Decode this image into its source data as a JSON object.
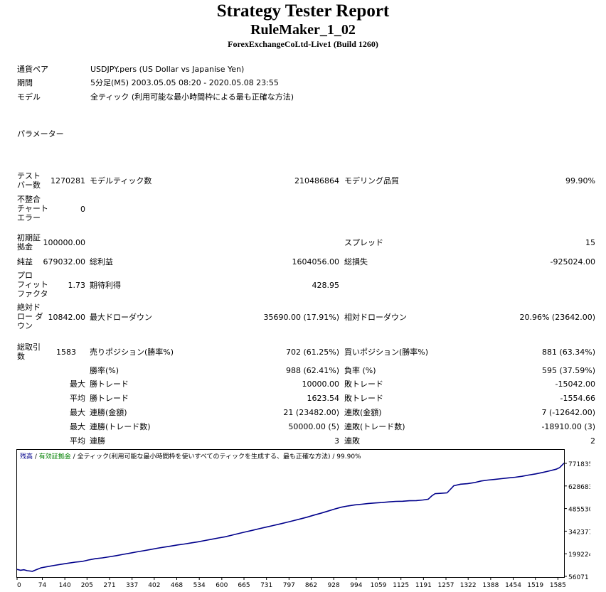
{
  "header": {
    "title": "Strategy Tester Report",
    "subtitle": "RuleMaker_1_02",
    "build": "ForexExchangeCoLtd-Live1 (Build 1260)"
  },
  "info": {
    "pair_label": "通貨ペア",
    "pair_value": "USDJPY.pers (US Dollar vs Japanise Yen)",
    "period_label": "期間",
    "period_value": "5分足(M5) 2003.05.05 08:20 - 2020.05.08 23:55",
    "model_label": "モデル",
    "model_value": "全ティック (利用可能な最小時間枠による最も正確な方法)",
    "params_label": "パラメーター"
  },
  "stats": {
    "bars_label": "テスト\nバー数",
    "bars_value": "1270281",
    "ticks_label": "モデルティック数",
    "ticks_value": "210486864",
    "quality_label": "モデリング品質",
    "quality_value": "99.90%",
    "mismatch_label": "不整合\nチャート\nエラー",
    "mismatch_value": "0",
    "deposit_label": "初期証\n拠金",
    "deposit_value": "100000.00",
    "spread_label": "スプレッド",
    "spread_value": "15",
    "net_label": "純益",
    "net_value": "679032.00",
    "gross_profit_label": "総利益",
    "gross_profit_value": "1604056.00",
    "gross_loss_label": "総損失",
    "gross_loss_value": "-925024.00",
    "pf_label": "プロ\nフィット\nファクタ",
    "pf_value": "1.73",
    "expected_label": "期待利得",
    "expected_value": "428.95",
    "abs_dd_label": "絶対ド\nロー ダ\nウン",
    "abs_dd_value": "10842.00",
    "max_dd_label": "最大ドローダウン",
    "max_dd_value": "35690.00 (17.91%)",
    "rel_dd_label": "相対ドローダウン",
    "rel_dd_value": "20.96% (23642.00)",
    "trades_label": "総取引\n数",
    "trades_value": "1583",
    "short_label": "売りポジション(勝率%)",
    "short_value": "702 (61.25%)",
    "long_label": "買いポジション(勝率%)",
    "long_value": "881 (63.34%)",
    "win_label": "勝率(%)",
    "win_value": "988 (62.41%)",
    "loss_label": "負率 (%)",
    "loss_value": "595 (37.59%)",
    "max1": "最大",
    "largest_win_label": "勝トレード",
    "largest_win_value": "10000.00",
    "largest_loss_label": "敗トレード",
    "largest_loss_value": "-15042.00",
    "avg1": "平均",
    "avg_win_label": "勝トレード",
    "avg_win_value": "1623.54",
    "avg_loss_label": "敗トレード",
    "avg_loss_value": "-1554.66",
    "max2": "最大",
    "cons_wins_label": "連勝(金額)",
    "cons_wins_value": "21 (23482.00)",
    "cons_losses_label": "連敗(金額)",
    "cons_losses_value": "7 (-12642.00)",
    "max3": "最大",
    "cons_profit_label": "連勝(トレード数)",
    "cons_profit_value": "50000.00 (5)",
    "cons_loss_label": "連敗(トレード数)",
    "cons_loss_value": "-18910.00 (3)",
    "avg2": "平均",
    "avg_cons_wins_label": "連勝",
    "avg_cons_wins_value": "3",
    "avg_cons_losses_label": "連敗",
    "avg_cons_losses_value": "2"
  },
  "chart_data": {
    "type": "line",
    "legend": {
      "balance": "残高",
      "sep1": " / ",
      "equity": "有効証拠金",
      "sep2": " / ",
      "model": "全ティック(利用可能な最小時間枠を使いすべてのティックを生成する、最も正確な方法)",
      "sep3": " / ",
      "quality": "99.90%"
    },
    "x_ticks": [
      "0",
      "74",
      "140",
      "205",
      "271",
      "337",
      "402",
      "468",
      "534",
      "600",
      "665",
      "731",
      "797",
      "862",
      "928",
      "994",
      "1059",
      "1125",
      "1191",
      "1257",
      "1322",
      "1388",
      "1454",
      "1519",
      "1585"
    ],
    "y_ticks": [
      "771835",
      "628683",
      "485530",
      "342377",
      "199224",
      "56071"
    ],
    "ylim": [
      56071,
      771835
    ],
    "xlim": [
      0,
      1603
    ],
    "series": [
      {
        "color": "#00008b",
        "x": [
          0,
          10,
          20,
          30,
          45,
          55,
          70,
          90,
          110,
          130,
          150,
          170,
          190,
          210,
          230,
          250,
          270,
          290,
          310,
          330,
          350,
          370,
          390,
          410,
          430,
          450,
          470,
          490,
          510,
          530,
          550,
          570,
          590,
          610,
          630,
          650,
          670,
          690,
          710,
          730,
          750,
          770,
          790,
          810,
          830,
          850,
          870,
          890,
          910,
          930,
          950,
          970,
          990,
          1010,
          1030,
          1050,
          1070,
          1090,
          1110,
          1130,
          1150,
          1170,
          1190,
          1205,
          1215,
          1225,
          1240,
          1260,
          1280,
          1300,
          1320,
          1340,
          1360,
          1380,
          1400,
          1420,
          1440,
          1460,
          1480,
          1500,
          1520,
          1540,
          1560,
          1580,
          1590,
          1603
        ],
        "y": [
          100000,
          95000,
          98000,
          92000,
          88000,
          97000,
          110000,
          118000,
          126000,
          133000,
          140000,
          146000,
          150000,
          160000,
          168000,
          173000,
          180000,
          187000,
          195000,
          203000,
          211000,
          218000,
          226000,
          234000,
          241000,
          248000,
          255000,
          261000,
          268000,
          275000,
          283000,
          291000,
          299000,
          307000,
          317000,
          328000,
          338000,
          348000,
          358000,
          368000,
          378000,
          388000,
          398000,
          409000,
          420000,
          431000,
          444000,
          456000,
          469000,
          482000,
          494000,
          502000,
          509000,
          513000,
          518000,
          521000,
          524000,
          528000,
          531000,
          532000,
          535000,
          536000,
          540000,
          545000,
          565000,
          580000,
          582000,
          585000,
          630000,
          640000,
          643000,
          650000,
          660000,
          666000,
          670000,
          675000,
          680000,
          684000,
          690000,
          698000,
          705000,
          714000,
          724000,
          735000,
          745000,
          773000
        ]
      }
    ]
  }
}
